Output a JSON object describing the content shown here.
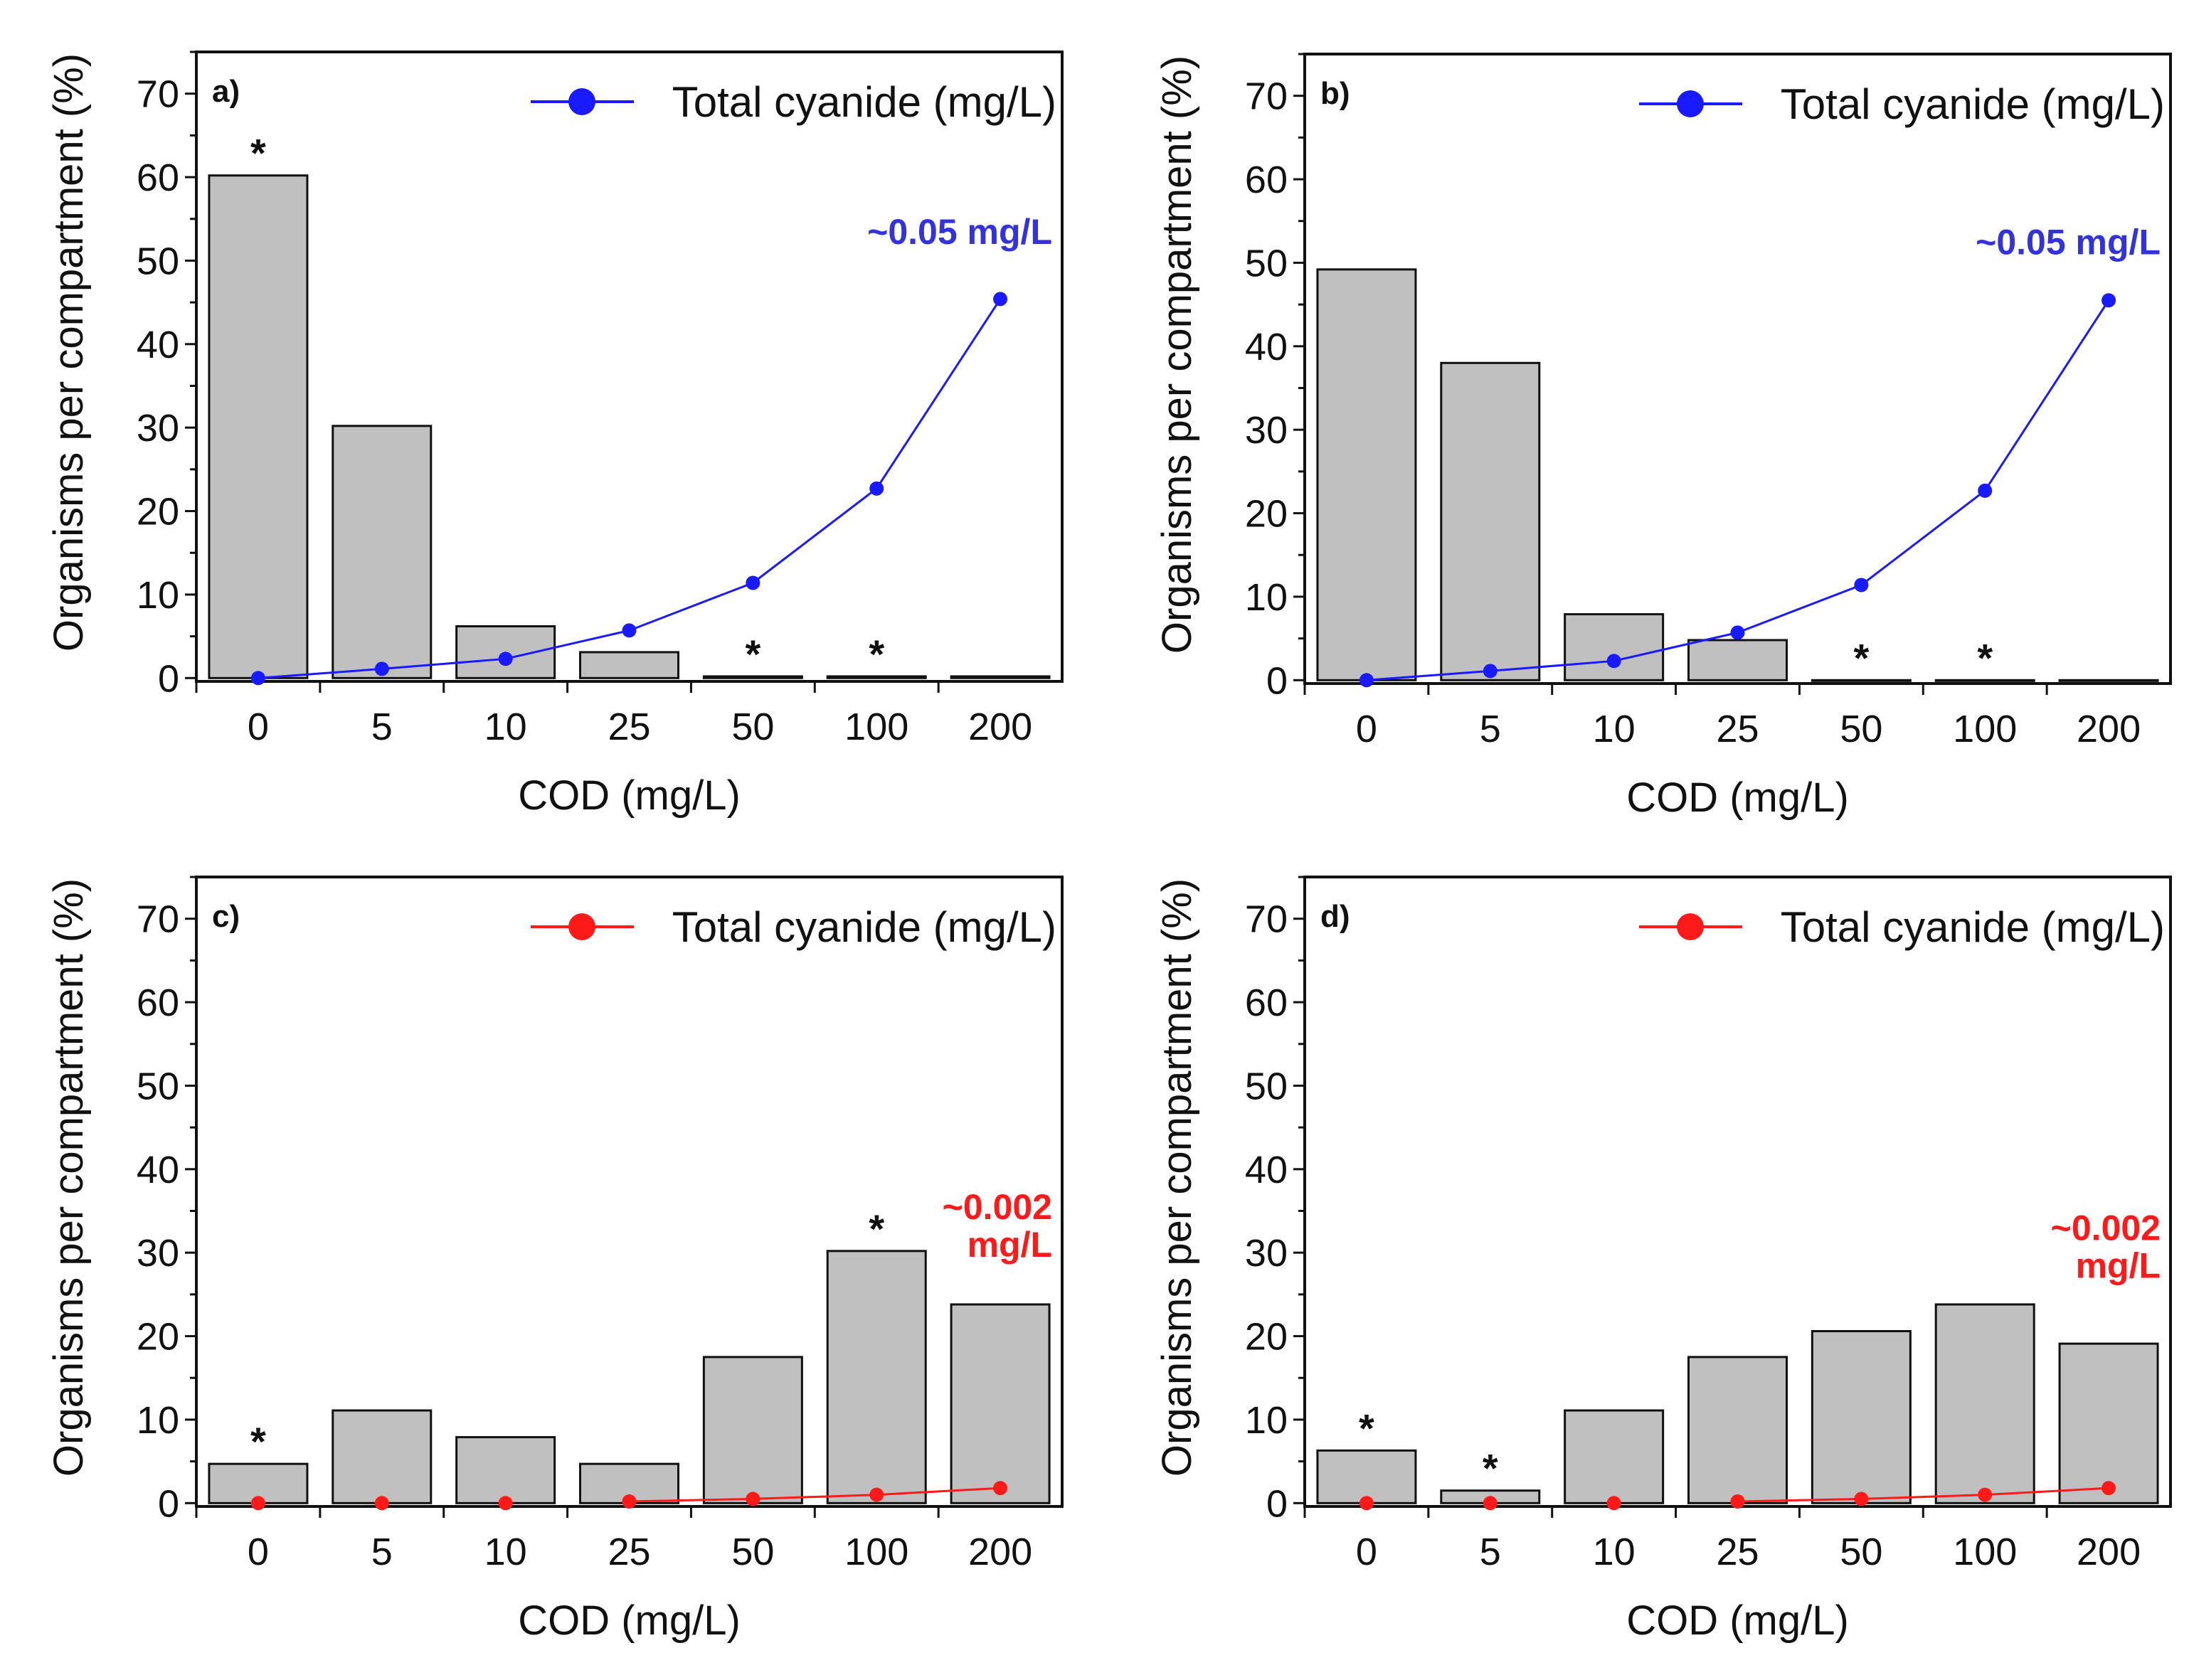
{
  "chart_data": [
    {
      "type": "bar",
      "panel_label": "a)",
      "categories": [
        "0",
        "5",
        "10",
        "25",
        "50",
        "100",
        "200"
      ],
      "xlabel": "COD (mg/L)",
      "ylabel": "Organisms per compartment (%)",
      "ylim": [
        0,
        75
      ],
      "yticks": [
        "0",
        "10",
        "20",
        "30",
        "40",
        "50",
        "60",
        "70"
      ],
      "series": [
        {
          "name": "Organisms per compartment",
          "type": "bar",
          "values": [
            60.2,
            30.2,
            6.2,
            3.1,
            0.2,
            0.2,
            0.2
          ]
        },
        {
          "name": "Total cyanide (mg/L)",
          "type": "line",
          "color": "#1a1aff",
          "values": [
            0,
            1.1,
            2.3,
            5.7,
            11.4,
            22.7,
            45.4
          ],
          "line_from_index": 0
        }
      ],
      "significance_markers": [
        "0",
        "50",
        "100"
      ],
      "marker_symbol": "*",
      "legend": {
        "label": "Total cyanide (mg/L)",
        "position": "top-right"
      },
      "annotation": {
        "lines": [
          "~0.05 mg/L"
        ],
        "color": "#3333dd",
        "at_category": "200",
        "at_value": [
          52
        ]
      }
    },
    {
      "type": "bar",
      "panel_label": "b)",
      "categories": [
        "0",
        "5",
        "10",
        "25",
        "50",
        "100",
        "200"
      ],
      "xlabel": "COD (mg/L)",
      "ylabel": "Organisms per compartment (%)",
      "ylim": [
        0,
        75
      ],
      "yticks": [
        "0",
        "10",
        "20",
        "30",
        "40",
        "50",
        "60",
        "70"
      ],
      "series": [
        {
          "name": "Organisms per compartment",
          "type": "bar",
          "values": [
            49.2,
            38.0,
            7.9,
            4.8,
            0,
            0,
            0
          ]
        },
        {
          "name": "Total cyanide (mg/L)",
          "type": "line",
          "color": "#1a1aff",
          "values": [
            0,
            1.1,
            2.3,
            5.7,
            11.4,
            22.7,
            45.5
          ],
          "line_from_index": 0
        }
      ],
      "significance_markers": [
        "50",
        "100"
      ],
      "marker_symbol": "*",
      "legend": {
        "label": "Total cyanide (mg/L)",
        "position": "top-right"
      },
      "annotation": {
        "lines": [
          "~0.05 mg/L"
        ],
        "color": "#3333dd",
        "at_category": "200",
        "at_value": [
          51
        ]
      }
    },
    {
      "type": "bar",
      "panel_label": "c)",
      "categories": [
        "0",
        "5",
        "10",
        "25",
        "50",
        "100",
        "200"
      ],
      "xlabel": "COD (mg/L)",
      "ylabel": "Organisms per compartment (%)",
      "ylim": [
        0,
        75
      ],
      "yticks": [
        "0",
        "10",
        "20",
        "30",
        "40",
        "50",
        "60",
        "70"
      ],
      "series": [
        {
          "name": "Organisms per compartment",
          "type": "bar",
          "values": [
            4.7,
            11.1,
            7.9,
            4.7,
            17.5,
            30.2,
            23.8
          ]
        },
        {
          "name": "Total cyanide (mg/L)",
          "type": "line",
          "color": "#ff1a1a",
          "values": [
            0,
            0,
            0,
            0.2,
            0.5,
            1.0,
            1.8
          ],
          "line_from_index": 3
        }
      ],
      "significance_markers": [
        "0",
        "100"
      ],
      "marker_symbol": "*",
      "legend": {
        "label": "Total cyanide (mg/L)",
        "position": "top-right"
      },
      "annotation": {
        "lines": [
          "~0.002",
          "mg/L"
        ],
        "color": "#ff1a1a",
        "at_category": "200",
        "at_value": [
          34,
          29.5
        ]
      }
    },
    {
      "type": "bar",
      "panel_label": "d)",
      "categories": [
        "0",
        "5",
        "10",
        "25",
        "50",
        "100",
        "200"
      ],
      "xlabel": "COD (mg/L)",
      "ylabel": "Organisms per compartment (%)",
      "ylim": [
        0,
        75
      ],
      "yticks": [
        "0",
        "10",
        "20",
        "30",
        "40",
        "50",
        "60",
        "70"
      ],
      "series": [
        {
          "name": "Organisms per compartment",
          "type": "bar",
          "values": [
            6.3,
            1.5,
            11.1,
            17.5,
            20.6,
            23.8,
            19.1
          ]
        },
        {
          "name": "Total cyanide (mg/L)",
          "type": "line",
          "color": "#ff1a1a",
          "values": [
            0,
            0,
            0,
            0.2,
            0.5,
            1.0,
            1.8
          ],
          "line_from_index": 3
        }
      ],
      "significance_markers": [
        "0",
        "5"
      ],
      "marker_symbol": "*",
      "legend": {
        "label": "Total cyanide (mg/L)",
        "position": "top-right"
      },
      "annotation": {
        "lines": [
          "~0.002",
          "mg/L"
        ],
        "color": "#ff1a1a",
        "at_category": "200",
        "at_value": [
          31.5,
          27
        ]
      }
    }
  ]
}
